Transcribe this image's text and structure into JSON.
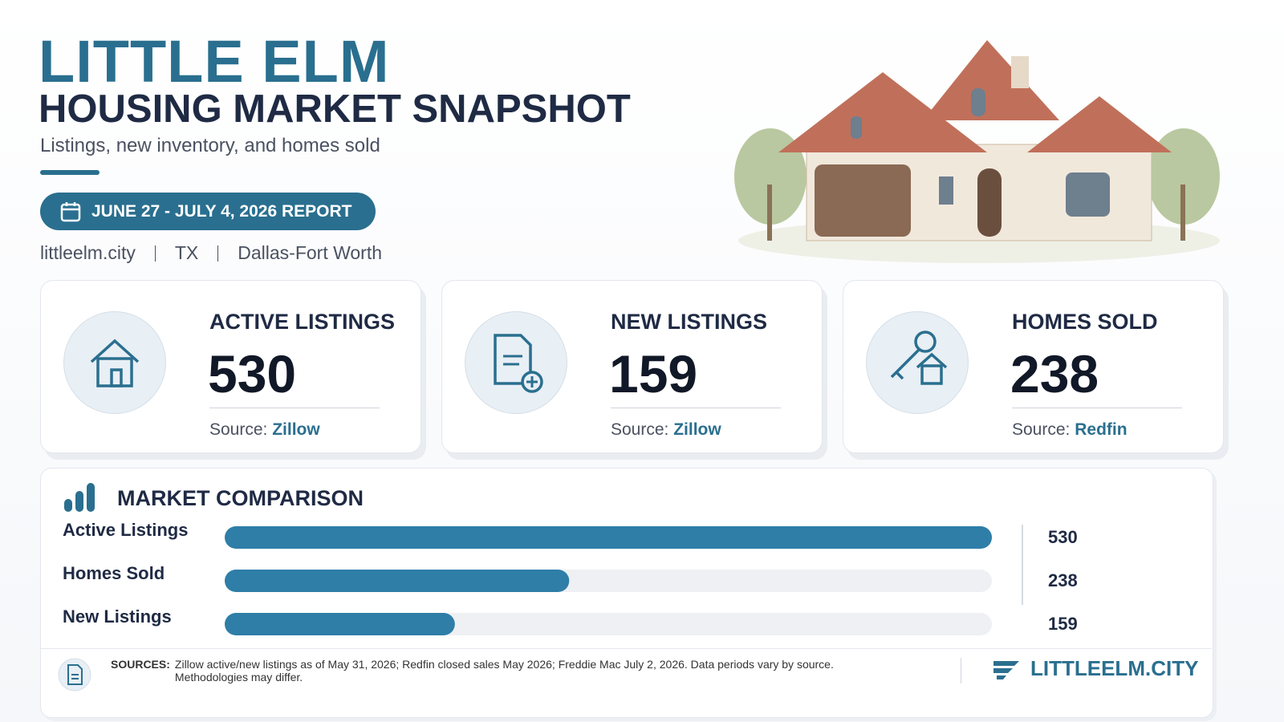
{
  "header": {
    "title": "LITTLE ELM",
    "subtitle": "HOUSING MARKET SNAPSHOT",
    "tagline": "Listings, new inventory, and homes sold",
    "report_badge": "JUNE 27 - JULY 4, 2026 REPORT",
    "location": [
      "littleelm.city",
      "TX",
      "Dallas-Fort Worth"
    ]
  },
  "cards": [
    {
      "label": "ACTIVE LISTINGS",
      "value": 530,
      "source_prefix": "Source:",
      "source": "Zillow"
    },
    {
      "label": "NEW LISTINGS",
      "value": 159,
      "source_prefix": "Source:",
      "source": "Zillow"
    },
    {
      "label": "HOMES SOLD",
      "value": 238,
      "source_prefix": "Source:",
      "source": "Redfin"
    }
  ],
  "comparison": {
    "title": "MARKET COMPARISON",
    "categories": [
      "Active Listings",
      "Homes Sold",
      "New Listings"
    ],
    "values": [
      530,
      238,
      159
    ],
    "xlim": [
      0,
      530
    ],
    "color": "#2e7ea8"
  },
  "footer": {
    "sources_label": "SOURCES:",
    "sources_text": "Zillow active/new listings as of May 31, 2026; Redfin closed sales May 2026; Freddie Mac July 2, 2026. Data periods vary by source. Methodologies may differ.",
    "brand": "LITTLEELM.CITY"
  }
}
